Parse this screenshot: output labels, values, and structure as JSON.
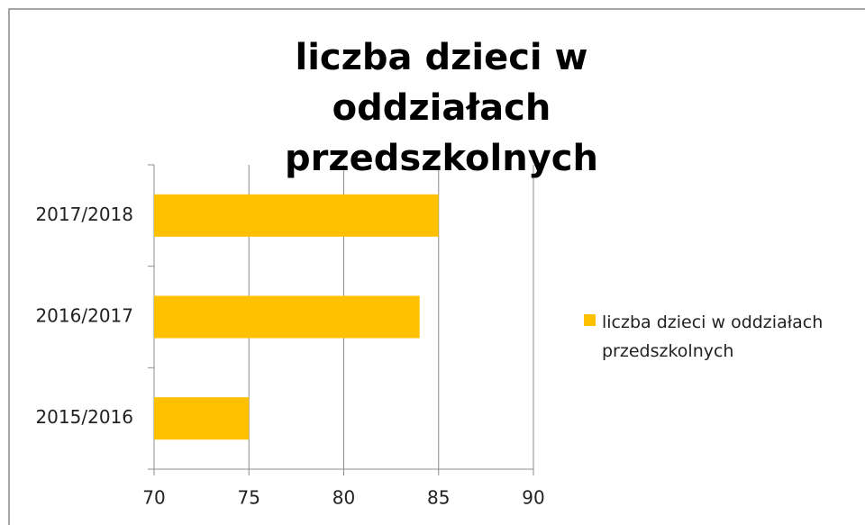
{
  "chart_data": {
    "type": "barh",
    "title": "liczba dzieci w oddziałach przedszkolnych",
    "categories": [
      "2015/2016",
      "2016/2017",
      "2017/2018"
    ],
    "series": [
      {
        "name": "liczba dzieci w oddziałach przedszkolnych",
        "color": "#ffc000",
        "values": [
          75,
          84,
          85
        ]
      }
    ],
    "xlim": [
      70,
      90
    ],
    "xticks": [
      70,
      75,
      80,
      85,
      90
    ],
    "grid": true,
    "legend": "right"
  }
}
